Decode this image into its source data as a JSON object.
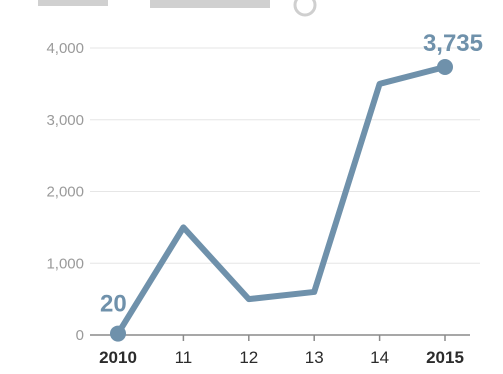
{
  "chart_data": {
    "type": "line",
    "x": [
      "2010",
      "11",
      "12",
      "13",
      "14",
      "2015"
    ],
    "y": [
      20,
      1500,
      500,
      600,
      3500,
      3735
    ],
    "yticks": [
      0,
      1000,
      2000,
      3000,
      4000
    ],
    "ytick_labels": [
      "0",
      "1,000",
      "2,000",
      "3,000",
      "4,000"
    ],
    "ylim": [
      0,
      4000
    ],
    "grid": true,
    "callouts": [
      {
        "index": 0,
        "text": "20"
      },
      {
        "index": 5,
        "text": "3,735"
      }
    ],
    "bold_x_label_index": 5
  },
  "colors": {
    "line": "#6f91ab",
    "callout_text": "#6f91ab",
    "grid": "#e6e6e6",
    "axis": "#8a8a8a"
  }
}
